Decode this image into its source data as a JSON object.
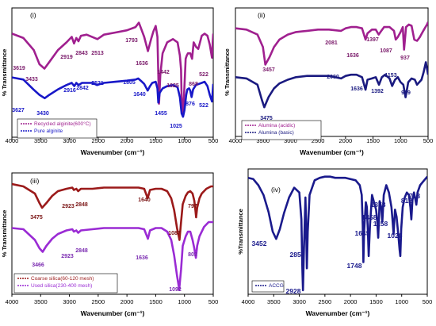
{
  "chart_data": [
    {
      "type": "line",
      "panel_label": "(i)",
      "xlabel": "Wavenumber (cm⁻¹)",
      "ylabel": "% Transmittance",
      "xlim": [
        4000,
        500
      ],
      "ylim": [
        0,
        100
      ],
      "x_ticks": [
        "4000",
        "3500",
        "3000",
        "2500",
        "2000",
        "1500",
        "1000",
        "500"
      ],
      "legend_position": "bottom-left",
      "series": [
        {
          "name": "Recycled alginite(600°C)",
          "color": "#a0208f",
          "x": [
            4000,
            3800,
            3619,
            3520,
            3433,
            3350,
            3200,
            3050,
            2960,
            2919,
            2880,
            2843,
            2800,
            2700,
            2513,
            2400,
            2200,
            2000,
            1850,
            1793,
            1750,
            1700,
            1636,
            1580,
            1540,
            1500,
            1470,
            1442,
            1420,
            1380,
            1300,
            1200,
            1120,
            1080,
            1060,
            1050,
            1025,
            1000,
            980,
            960,
            940,
            900,
            868,
            840,
            800,
            760,
            700,
            650,
            600,
            560,
            522,
            510,
            500
          ],
          "y": [
            78,
            74,
            63,
            50,
            46,
            52,
            63,
            70,
            75,
            69,
            74,
            71,
            76,
            77,
            73,
            77,
            79,
            81,
            84,
            88,
            82,
            75,
            62,
            73,
            80,
            85,
            75,
            14,
            40,
            60,
            70,
            73,
            70,
            58,
            45,
            20,
            4,
            30,
            55,
            58,
            60,
            60,
            55,
            70,
            66,
            64,
            76,
            78,
            76,
            68,
            56,
            70,
            78
          ]
        },
        {
          "name": "Pure alginite",
          "color": "#1818c8",
          "x": [
            4000,
            3800,
            3627,
            3520,
            3430,
            3350,
            3200,
            3050,
            2960,
            2916,
            2880,
            2842,
            2780,
            2600,
            2521,
            2400,
            2200,
            2000,
            1850,
            1805,
            1760,
            1700,
            1640,
            1600,
            1560,
            1500,
            1470,
            1455,
            1430,
            1380,
            1300,
            1200,
            1120,
            1080,
            1050,
            1025,
            1000,
            970,
            950,
            920,
            900,
            876,
            850,
            800,
            750,
            700,
            650,
            600,
            560,
            522,
            505,
            500
          ],
          "y": [
            38,
            36,
            27,
            22,
            19,
            22,
            27,
            31,
            33,
            30,
            33,
            31,
            33,
            33,
            31,
            33,
            34,
            35,
            36,
            37,
            35,
            32,
            26,
            30,
            33,
            34,
            28,
            15,
            24,
            28,
            30,
            31,
            29,
            20,
            5,
            2,
            8,
            22,
            27,
            28,
            26,
            20,
            27,
            31,
            32,
            33,
            34,
            30,
            22,
            16,
            28,
            32
          ]
        }
      ],
      "annotations": [
        "3619",
        "3433",
        "2919",
        "2843",
        "2513",
        "1793",
        "1636",
        "1442",
        "1025",
        "868",
        "522",
        "3627",
        "3430",
        "2916",
        "2842",
        "2521",
        "1805",
        "1640",
        "1455",
        "876",
        "522",
        "1025"
      ]
    },
    {
      "type": "line",
      "panel_label": "(ii)",
      "xlabel": "Wavenumber (cm⁻¹)",
      "ylabel": "% Transmittance",
      "xlim": [
        4000,
        500
      ],
      "ylim": [
        0,
        100
      ],
      "x_ticks": [
        "4000",
        "3500",
        "3000",
        "2500",
        "2000",
        "1500",
        "1000",
        "500"
      ],
      "legend_position": "bottom-left",
      "series": [
        {
          "name": "Alumina (acidic)",
          "color": "#a0208f",
          "x": [
            4000,
            3800,
            3600,
            3500,
            3457,
            3380,
            3300,
            3200,
            3050,
            2900,
            2700,
            2500,
            2300,
            2081,
            2000,
            1900,
            1800,
            1700,
            1636,
            1600,
            1520,
            1450,
            1397,
            1350,
            1300,
            1200,
            1120,
            1087,
            1050,
            1000,
            960,
            937,
            900,
            850,
            800,
            750,
            700,
            650,
            600,
            560,
            520,
            500
          ],
          "y": [
            85,
            84,
            80,
            70,
            56,
            62,
            70,
            76,
            80,
            82,
            83,
            84,
            84,
            83,
            85,
            86,
            86,
            85,
            76,
            81,
            84,
            84,
            80,
            83,
            86,
            86,
            83,
            76,
            78,
            82,
            86,
            68,
            86,
            88,
            87,
            76,
            75,
            78,
            82,
            85,
            88,
            90
          ]
        },
        {
          "name": "Alumina (basic)",
          "color": "#1a1a80",
          "x": [
            4000,
            3800,
            3600,
            3520,
            3475,
            3400,
            3300,
            3200,
            3050,
            2900,
            2700,
            2500,
            2300,
            2080,
            2000,
            1900,
            1800,
            1700,
            1636,
            1600,
            1520,
            1450,
            1392,
            1340,
            1280,
            1200,
            1153,
            1100,
            1050,
            1000,
            950,
            909,
            860,
            800,
            740,
            700,
            660,
            620,
            580,
            540,
            500
          ],
          "y": [
            46,
            45,
            40,
            28,
            22,
            30,
            37,
            41,
            44,
            46,
            47,
            47,
            47,
            45,
            47,
            48,
            48,
            46,
            36,
            44,
            45,
            46,
            40,
            46,
            48,
            45,
            39,
            44,
            46,
            42,
            40,
            30,
            42,
            45,
            44,
            40,
            42,
            44,
            50,
            58,
            48
          ]
        }
      ],
      "annotations": [
        "2081",
        "1397",
        "1636",
        "1087",
        "937",
        "3457",
        "2080",
        "1636",
        "1392",
        "1153",
        "909",
        "3475"
      ]
    },
    {
      "type": "line",
      "panel_label": "(iii)",
      "xlabel": "Wavenumber (cm⁻¹)",
      "ylabel": "% Transmittance",
      "xlim": [
        4000,
        500
      ],
      "ylim": [
        0,
        100
      ],
      "x_ticks": [
        "4000",
        "3500",
        "3000",
        "2500",
        "2000",
        "1500",
        "1000",
        "500"
      ],
      "legend_position": "bottom-left",
      "series": [
        {
          "name": "Coarse silica(60-120 mesh)",
          "color": "#9b1a1a",
          "x": [
            4000,
            3800,
            3600,
            3520,
            3475,
            3400,
            3300,
            3200,
            3050,
            2950,
            2923,
            2880,
            2848,
            2800,
            2600,
            2400,
            2200,
            2000,
            1800,
            1700,
            1640,
            1600,
            1500,
            1400,
            1300,
            1230,
            1180,
            1130,
            1100,
            1087,
            1060,
            1030,
            980,
            940,
            900,
            860,
            830,
            810,
            797,
            780,
            740,
            700,
            660,
            620,
            580,
            540,
            500
          ],
          "y": [
            92,
            90,
            84,
            76,
            72,
            76,
            82,
            86,
            88,
            89,
            87,
            88,
            86,
            88,
            88,
            89,
            89,
            89,
            89,
            88,
            80,
            87,
            88,
            88,
            86,
            80,
            70,
            55,
            48,
            45,
            60,
            75,
            82,
            85,
            86,
            84,
            78,
            70,
            64,
            72,
            80,
            84,
            86,
            88,
            89,
            90,
            90
          ]
        },
        {
          "name": "Used silica(230-400 mesh)",
          "color": "#9a2bd4",
          "x": [
            4000,
            3800,
            3600,
            3520,
            3466,
            3400,
            3300,
            3200,
            3050,
            2950,
            2923,
            2880,
            2848,
            2800,
            2600,
            2400,
            2200,
            2000,
            1800,
            1700,
            1636,
            1600,
            1500,
            1400,
            1300,
            1230,
            1180,
            1130,
            1100,
            1092,
            1060,
            1030,
            980,
            940,
            900,
            860,
            830,
            802,
            780,
            740,
            700,
            660,
            620,
            580,
            540,
            500
          ],
          "y": [
            55,
            54,
            45,
            38,
            35,
            40,
            46,
            50,
            53,
            54,
            52,
            53,
            51,
            53,
            54,
            55,
            55,
            55,
            55,
            54,
            46,
            53,
            55,
            55,
            52,
            45,
            32,
            15,
            6,
            3,
            20,
            40,
            48,
            52,
            52,
            45,
            38,
            30,
            40,
            48,
            52,
            56,
            58,
            60,
            60,
            60
          ]
        }
      ],
      "annotations": [
        "3475",
        "2923",
        "2848",
        "1640",
        "797",
        "1087",
        "3466",
        "2923",
        "2848",
        "1636",
        "802",
        "1092"
      ]
    },
    {
      "type": "line",
      "panel_label": "(iv)",
      "xlabel": "Wavenumber (cm⁻¹)",
      "ylabel": "%Transmittance",
      "xlim": [
        4000,
        500
      ],
      "ylim": [
        0,
        100
      ],
      "x_ticks": [
        "4000",
        "3500",
        "3000",
        "2500",
        "2000",
        "1500",
        "1000",
        "500"
      ],
      "legend_position": "bottom-left",
      "series": [
        {
          "name": "ACCG",
          "color": "#1a1a8c",
          "x": [
            4000,
            3900,
            3800,
            3700,
            3600,
            3520,
            3452,
            3380,
            3300,
            3200,
            3100,
            3000,
            2960,
            2940,
            2928,
            2910,
            2880,
            2870,
            2853,
            2835,
            2800,
            2700,
            2600,
            2500,
            2400,
            2300,
            2200,
            2100,
            2000,
            1900,
            1820,
            1780,
            1760,
            1748,
            1735,
            1700,
            1680,
            1660,
            1645,
            1620,
            1580,
            1500,
            1480,
            1458,
            1430,
            1400,
            1378,
            1350,
            1300,
            1250,
            1200,
            1180,
            1158,
            1130,
            1100,
            1060,
            1040,
            1026,
            1010,
            980,
            940,
            900,
            860,
            830,
            812,
            790,
            760,
            740,
            713,
            690,
            640,
            600,
            560,
            520,
            500
          ],
          "y": [
            94,
            93,
            88,
            80,
            66,
            50,
            44,
            52,
            65,
            78,
            86,
            82,
            60,
            20,
            2,
            35,
            78,
            60,
            20,
            50,
            80,
            92,
            94,
            95,
            95,
            94,
            94,
            94,
            93,
            92,
            88,
            80,
            55,
            25,
            50,
            74,
            70,
            50,
            30,
            55,
            80,
            68,
            60,
            45,
            75,
            70,
            58,
            80,
            88,
            82,
            70,
            60,
            48,
            68,
            62,
            45,
            35,
            30,
            52,
            70,
            78,
            82,
            80,
            70,
            60,
            76,
            82,
            78,
            72,
            82,
            88,
            90,
            92,
            94,
            95
          ]
        }
      ],
      "annotations": [
        "3452",
        "2928",
        "2853",
        "1748",
        "1645",
        "1458",
        "1378",
        "1158",
        "1026",
        "812",
        "713"
      ]
    }
  ]
}
